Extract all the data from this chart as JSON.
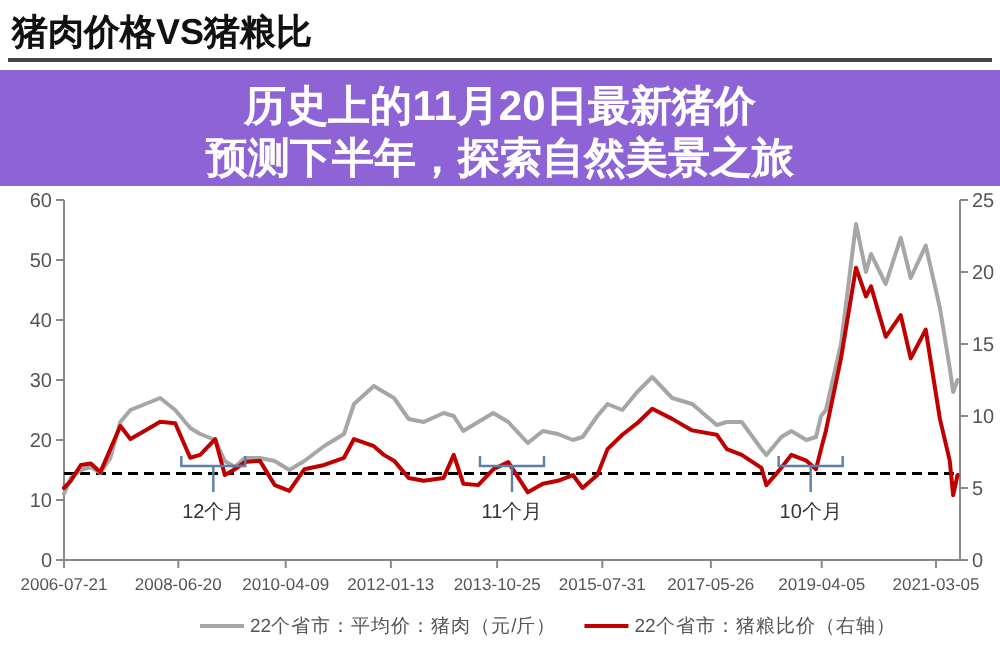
{
  "chart_data": {
    "type": "line",
    "title": "猪肉价格VS猪粮比",
    "x": [
      "2006-07-21",
      "2006-09",
      "2006-11",
      "2007-01",
      "2007-03",
      "2007-05",
      "2007-07",
      "2007-09",
      "2007-12",
      "2008-03",
      "2008-06",
      "2008-09",
      "2008-11",
      "2009-02",
      "2009-04",
      "2009-06",
      "2009-08",
      "2009-11",
      "2010-02",
      "2010-05",
      "2010-08",
      "2010-12",
      "2011-04",
      "2011-06",
      "2011-10",
      "2011-12",
      "2012-02",
      "2012-05",
      "2012-08",
      "2012-12",
      "2013-02",
      "2013-04",
      "2013-07",
      "2013-10",
      "2014-01",
      "2014-05",
      "2014-08",
      "2014-11",
      "2015-02",
      "2015-04",
      "2015-07",
      "2015-09",
      "2015-12",
      "2016-03",
      "2016-06",
      "2016-10",
      "2017-02",
      "2017-07",
      "2017-09",
      "2017-12",
      "2018-04",
      "2018-05",
      "2018-08",
      "2018-10",
      "2019-01",
      "2019-03",
      "2019-04",
      "2019-05",
      "2019-08",
      "2019-11",
      "2020-01",
      "2020-02",
      "2020-05",
      "2020-08",
      "2020-10",
      "2021-01",
      "2021-03-29",
      "2021-05-28",
      "2021-06-18",
      "2021-07-15"
    ],
    "series": [
      {
        "name": "22个省市：平均价：猪肉（元/斤）",
        "color": "#a6a6a6",
        "values": [
          11,
          13.7,
          15,
          15.5,
          14.5,
          17,
          23,
          25,
          26,
          27,
          25,
          22,
          21,
          20,
          16.5,
          15.5,
          17,
          17,
          16.5,
          15,
          16.5,
          19,
          21,
          26,
          29,
          28,
          27,
          23.5,
          23,
          24.5,
          24,
          21.5,
          23,
          24.5,
          23,
          19.5,
          21.5,
          21,
          20,
          20.5,
          24,
          26,
          25,
          28,
          30.5,
          27,
          26,
          22.5,
          23,
          23,
          18.5,
          17.5,
          20.5,
          21.5,
          20,
          20.5,
          24,
          25,
          36,
          56,
          48,
          51,
          46,
          53.7,
          47,
          52.4,
          42,
          32,
          28,
          30
        ]
      },
      {
        "name": "22个省市：猪粮比价（右轴）",
        "color": "#c00000",
        "axis": "y2",
        "values": [
          5,
          5.5,
          6.6,
          6.7,
          6.1,
          7.7,
          9.3,
          8.4,
          9,
          9.6,
          9.5,
          7.1,
          7.3,
          8.4,
          5.9,
          6.3,
          6.8,
          6.9,
          5.2,
          4.8,
          6.3,
          6.6,
          7.1,
          8.4,
          7.9,
          7.3,
          6.9,
          5.7,
          5.5,
          5.7,
          7.3,
          5.3,
          5.2,
          6.3,
          6.8,
          4.7,
          5.3,
          5.5,
          5.9,
          5,
          5.9,
          7.7,
          8.7,
          9.5,
          10.5,
          9.8,
          9,
          8.7,
          7.7,
          7.3,
          6.4,
          5.2,
          6.4,
          7.3,
          6.9,
          6.3,
          7.7,
          9,
          14,
          20.3,
          18.3,
          19,
          15.5,
          17,
          14,
          16,
          9.8,
          6.9,
          4.5,
          5.9
        ]
      }
    ],
    "xlim": [
      "2006-07-21",
      "2021-07-30"
    ],
    "xticks": [
      "2006-07-21",
      "2008-06-20",
      "2010-04-09",
      "2012-01-13",
      "2013-10-25",
      "2015-07-31",
      "2017-05-26",
      "2019-04-05",
      "2021-03-05"
    ],
    "ylim": [
      0,
      60
    ],
    "yticks": [
      0,
      10,
      20,
      30,
      40,
      50,
      60
    ],
    "y2lim": [
      0,
      25
    ],
    "y2ticks": [
      0,
      5,
      10,
      15,
      20,
      25
    ],
    "ref_lines": [
      {
        "axis": "y2",
        "value": 6,
        "color": "#000000",
        "line_style": "dashed"
      }
    ],
    "annotations": [
      "历史上的11月20日最新猪价预测下半年，探索自然美景之旅",
      "12个月",
      "11个月",
      "10个月"
    ],
    "legend": "bottom",
    "grid": false,
    "marker": "none",
    "line_style": "solid"
  }
}
